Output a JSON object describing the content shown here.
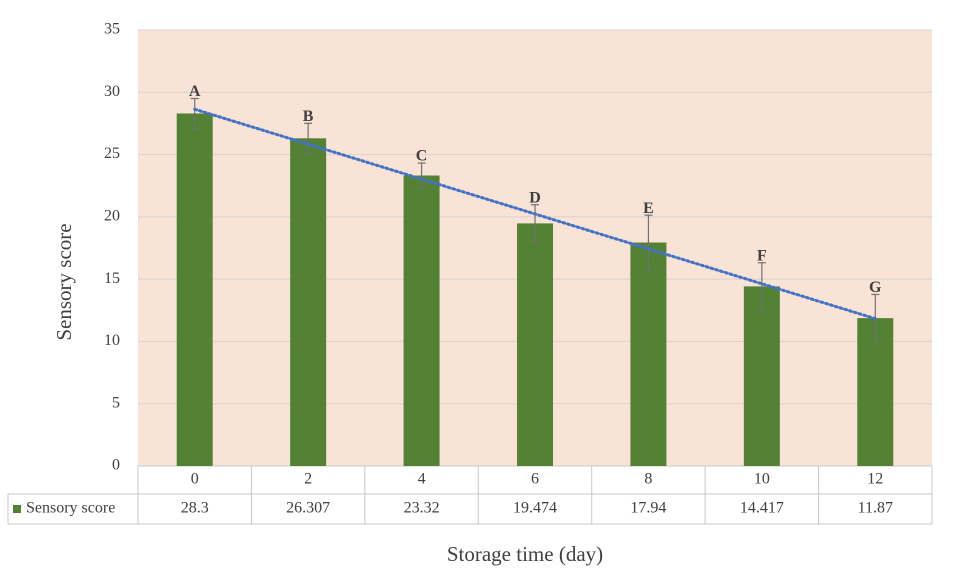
{
  "chart_data": {
    "type": "bar",
    "y_label": "Sensory score",
    "x_label": "Storage time (day)",
    "categories": [
      "0",
      "2",
      "4",
      "6",
      "8",
      "10",
      "12"
    ],
    "series": [
      {
        "name": "Sensory score",
        "color": "#548235",
        "values": [
          28.3,
          26.307,
          23.32,
          19.474,
          17.94,
          14.417,
          11.87
        ],
        "errors": [
          1.2,
          1.2,
          1.0,
          1.5,
          2.2,
          1.9,
          1.9
        ],
        "letters": [
          "A",
          "B",
          "C",
          "D",
          "E",
          "F",
          "G"
        ]
      }
    ],
    "ylim": [
      0,
      35
    ],
    "yticks": [
      0,
      5,
      10,
      15,
      20,
      25,
      30,
      35
    ],
    "grid": true,
    "trendline": "linear",
    "data_table": true
  }
}
